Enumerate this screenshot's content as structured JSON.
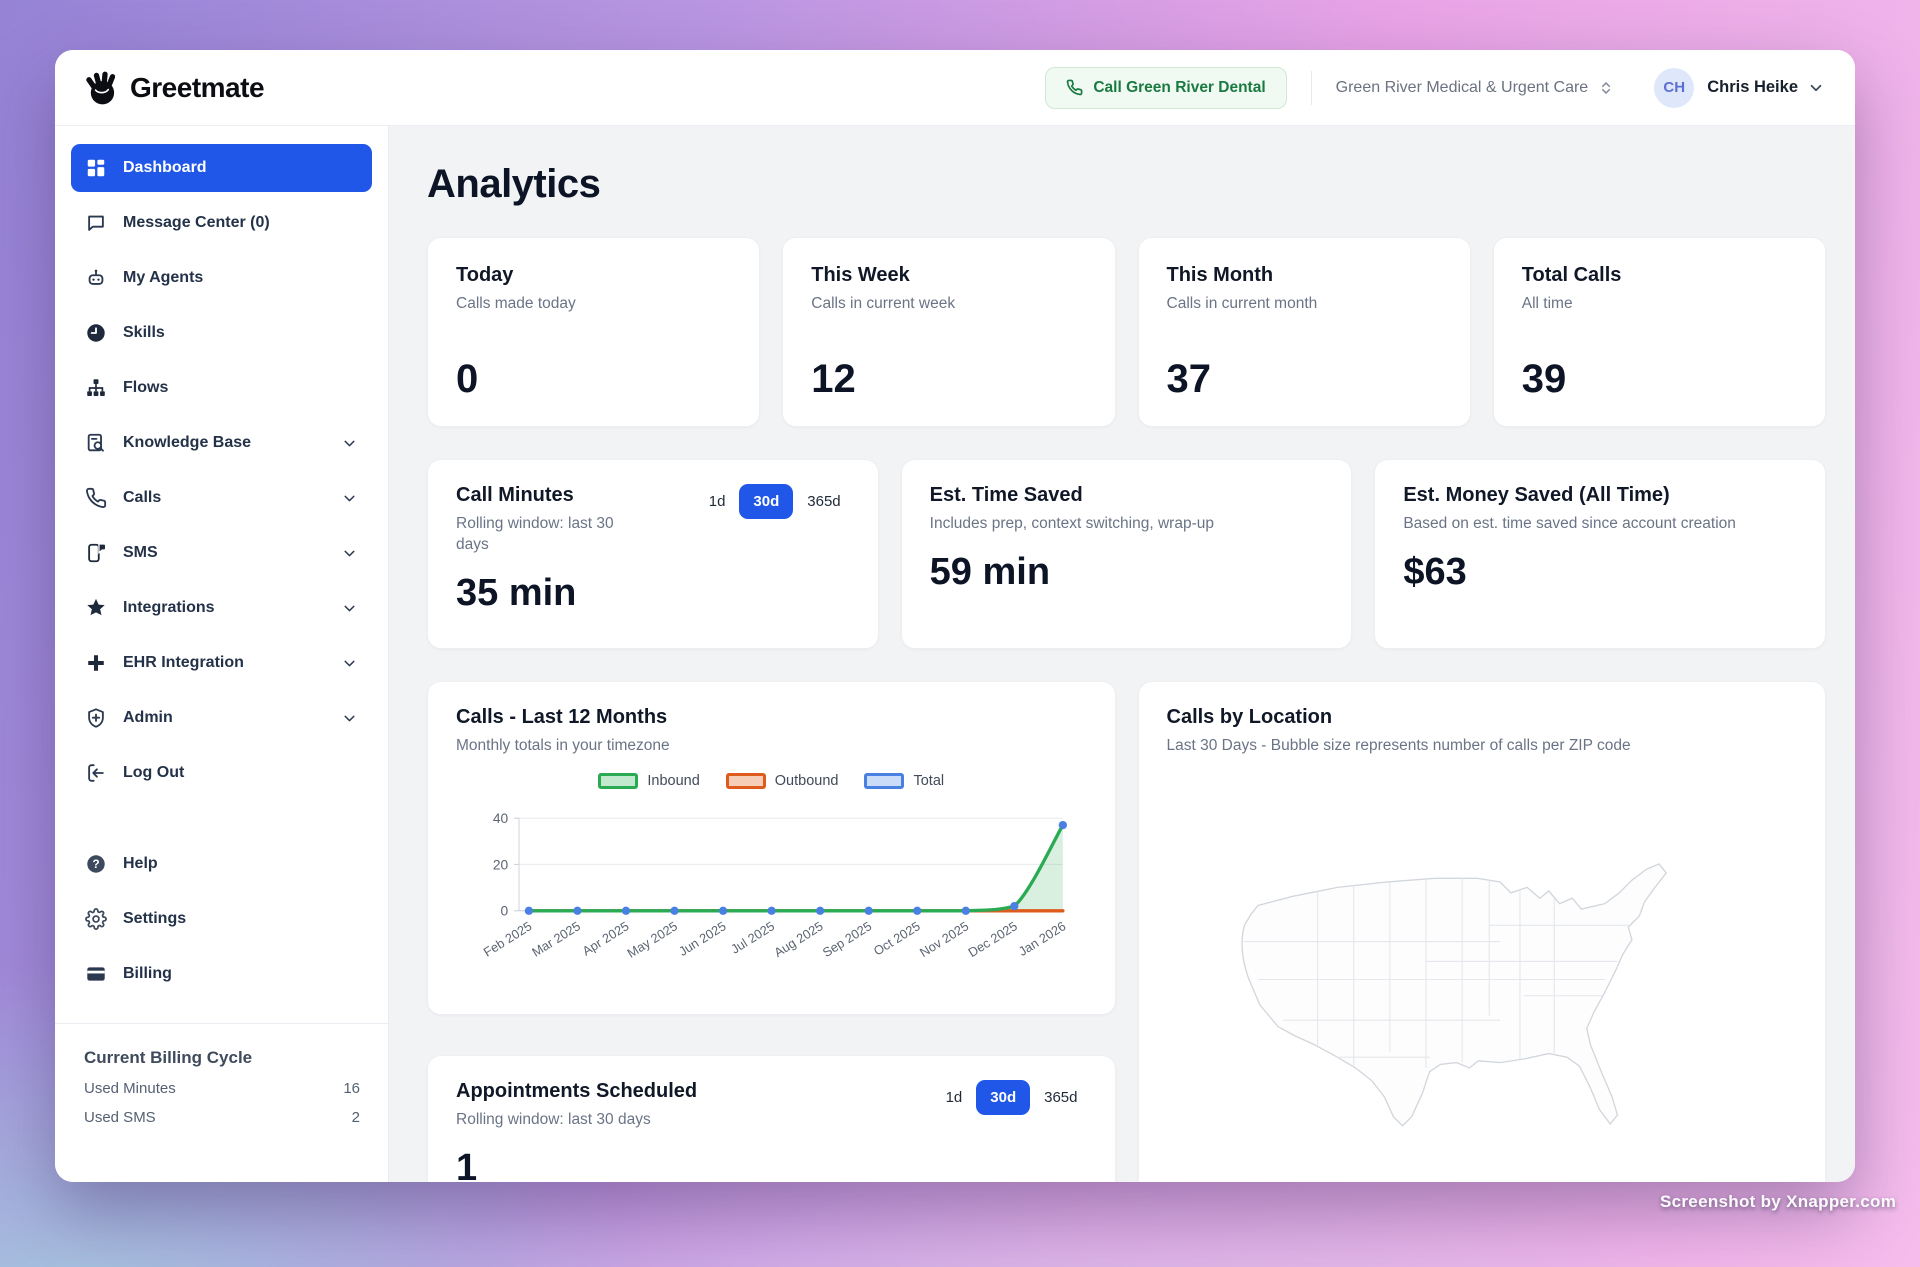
{
  "header": {
    "brand": "Greetmate",
    "call_button_label": "Call Green River Dental",
    "org_selector_value": "Green River Medical & Urgent Care",
    "avatar_initials": "CH",
    "user_name": "Chris Heike"
  },
  "sidebar": {
    "items": [
      {
        "label": "Dashboard",
        "active": true
      },
      {
        "label": "Message Center (0)"
      },
      {
        "label": "My Agents"
      },
      {
        "label": "Skills"
      },
      {
        "label": "Flows"
      },
      {
        "label": "Knowledge Base",
        "expandable": true
      },
      {
        "label": "Calls",
        "expandable": true
      },
      {
        "label": "SMS",
        "expandable": true
      },
      {
        "label": "Integrations",
        "expandable": true
      },
      {
        "label": "EHR Integration",
        "expandable": true
      },
      {
        "label": "Admin",
        "expandable": true
      },
      {
        "label": "Log Out"
      }
    ],
    "footer_items": [
      {
        "label": "Help"
      },
      {
        "label": "Settings"
      },
      {
        "label": "Billing"
      }
    ],
    "billing_cycle": {
      "title": "Current Billing Cycle",
      "rows": [
        {
          "label": "Used Minutes",
          "value": "16"
        },
        {
          "label": "Used SMS",
          "value": "2"
        }
      ]
    }
  },
  "main": {
    "page_title": "Analytics",
    "stat_cards": [
      {
        "title": "Today",
        "subtitle": "Calls made today",
        "value": "0"
      },
      {
        "title": "This Week",
        "subtitle": "Calls in current week",
        "value": "12"
      },
      {
        "title": "This Month",
        "subtitle": "Calls in current month",
        "value": "37"
      },
      {
        "title": "Total Calls",
        "subtitle": "All time",
        "value": "39"
      }
    ],
    "call_minutes": {
      "title": "Call Minutes",
      "subtitle": "Rolling window: last 30 days",
      "value": "35 min",
      "range_options": [
        "1d",
        "30d",
        "365d"
      ],
      "selected_range": "30d"
    },
    "time_saved": {
      "title": "Est. Time Saved",
      "subtitle": "Includes prep, context switching, wrap-up",
      "value": "59 min"
    },
    "money_saved": {
      "title": "Est. Money Saved (All Time)",
      "subtitle": "Based on est. time saved since account creation",
      "value": "$63"
    },
    "calls_chart_card": {
      "title": "Calls - Last 12 Months",
      "subtitle": "Monthly totals in your timezone"
    },
    "location_card": {
      "title": "Calls by Location",
      "subtitle": "Last 30 Days - Bubble size represents number of calls per ZIP code"
    },
    "appointments": {
      "title": "Appointments Scheduled",
      "subtitle": "Rolling window: last 30 days",
      "value": "1",
      "range_options": [
        "1d",
        "30d",
        "365d"
      ],
      "selected_range": "30d"
    }
  },
  "chart_data": {
    "type": "line",
    "title": "Calls - Last 12 Months",
    "subtitle": "Monthly totals in your timezone",
    "x": [
      "Feb 2025",
      "Mar 2025",
      "Apr 2025",
      "May 2025",
      "Jun 2025",
      "Jul 2025",
      "Aug 2025",
      "Sep 2025",
      "Oct 2025",
      "Nov 2025",
      "Dec 2025",
      "Jan 2026"
    ],
    "series": [
      {
        "name": "Inbound",
        "color": "#2aab53",
        "swatch_fill": "#c2e8ce",
        "area_fill": "rgba(42,171,83,0.18)",
        "values": [
          0,
          0,
          0,
          0,
          0,
          0,
          0,
          0,
          0,
          0,
          2,
          37
        ]
      },
      {
        "name": "Outbound",
        "color": "#df5a1d",
        "swatch_fill": "#f6cdb6",
        "values": [
          0,
          0,
          0,
          0,
          0,
          0,
          0,
          0,
          0,
          0,
          0,
          0
        ]
      },
      {
        "name": "Total",
        "color": "#4a80e2",
        "swatch_fill": "#cbdcf8",
        "dots": true,
        "values": [
          0,
          0,
          0,
          0,
          0,
          0,
          0,
          0,
          0,
          0,
          2,
          37
        ]
      }
    ],
    "ylim": [
      0,
      40
    ],
    "yticks": [
      0,
      20,
      40
    ],
    "legend_position": "top",
    "grid": true
  },
  "watermark": "Screenshot by Xnapper.com",
  "colors": {
    "accent_blue": "#2057e8",
    "call_button_green": "#1b7a42",
    "sidebar_text": "#243249",
    "background_purple": "#9583d5",
    "background_pink": "#f5bdec",
    "background_blue": "#a6c5df"
  }
}
